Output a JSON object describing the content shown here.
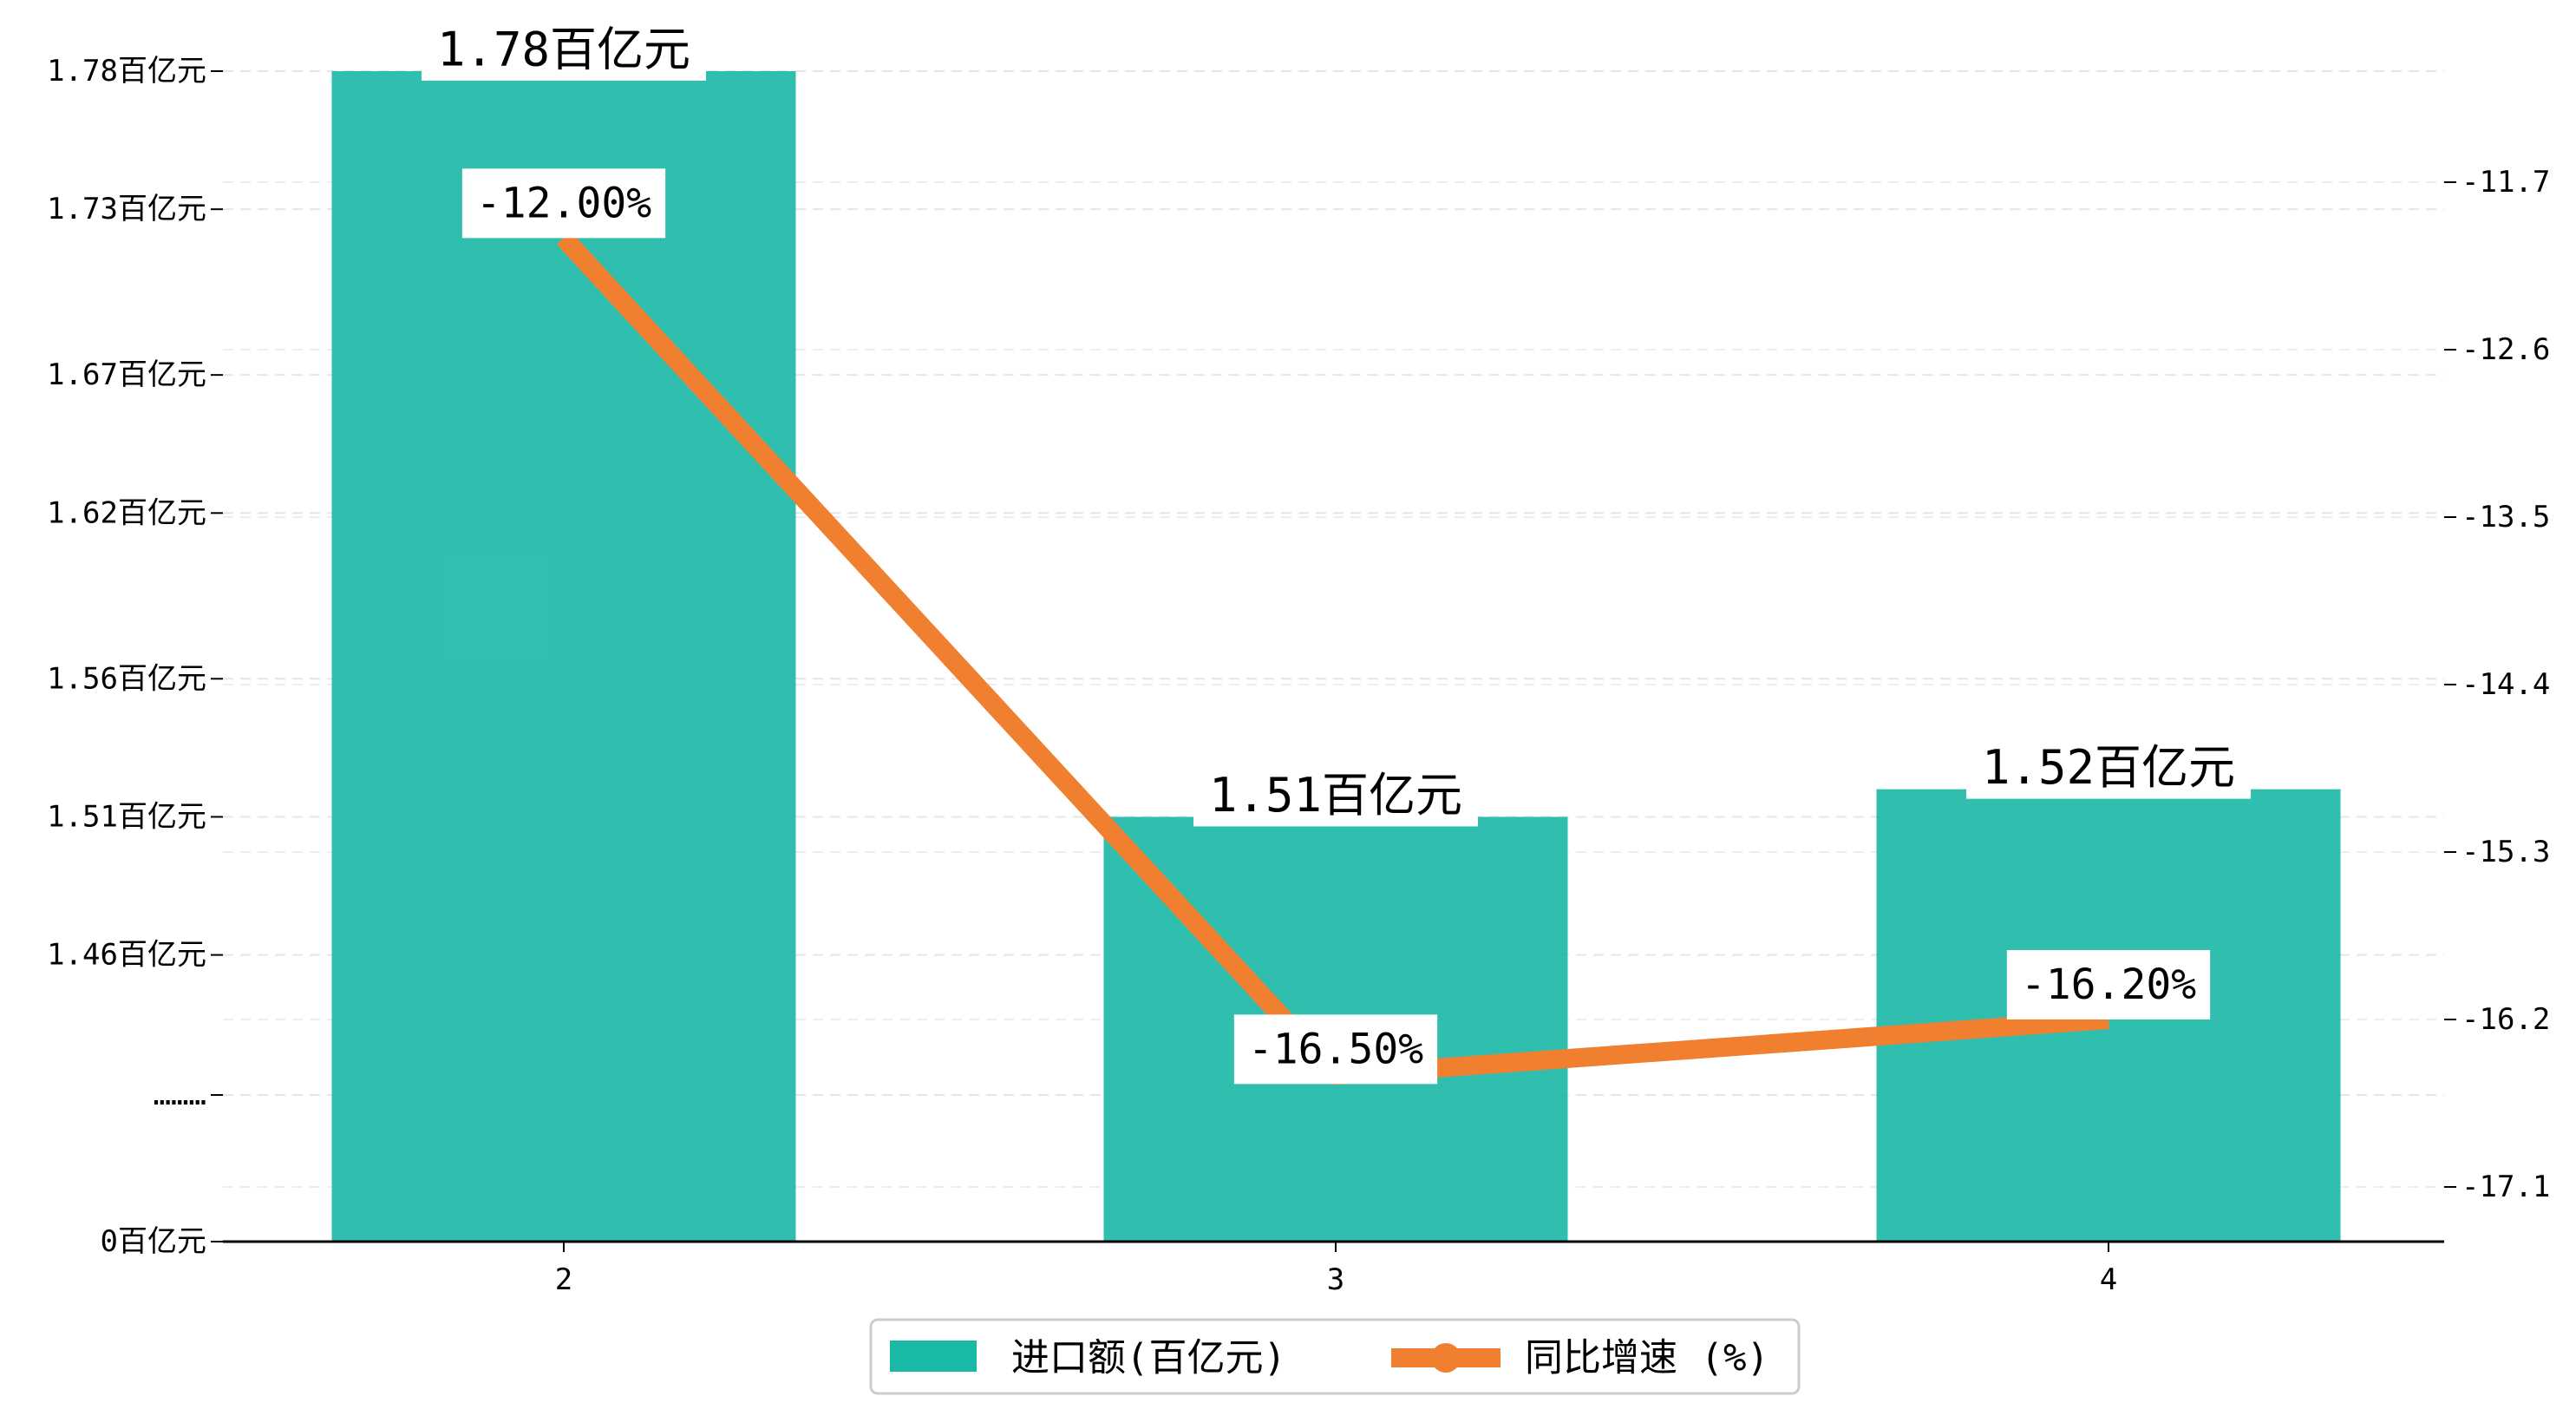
{
  "chart_data": {
    "type": "bar",
    "categories": [
      "2",
      "3",
      "4"
    ],
    "series": [
      {
        "name": "进口额(百亿元)",
        "type": "bar",
        "axis": "left",
        "values": [
          1.78,
          1.51,
          1.52
        ],
        "labels": [
          "1.78百亿元",
          "1.51百亿元",
          "1.52百亿元"
        ],
        "color": "#1ab8a6"
      },
      {
        "name": "同比增速 (%)",
        "type": "line",
        "axis": "right",
        "values": [
          -12.0,
          -16.5,
          -16.2
        ],
        "labels": [
          "-12.00%",
          "-16.50%",
          "-16.20%"
        ],
        "color": "#f08030"
      }
    ],
    "y_left": {
      "broken_axis": true,
      "ticks": [
        {
          "value": 0,
          "label": "0百亿元"
        },
        {
          "value": 1.4093,
          "label": "………"
        },
        {
          "value": 1.46,
          "label": "1.46百亿元"
        },
        {
          "value": 1.51,
          "label": "1.51百亿元"
        },
        {
          "value": 1.56,
          "label": "1.56百亿元"
        },
        {
          "value": 1.62,
          "label": "1.62百亿元"
        },
        {
          "value": 1.67,
          "label": "1.67百亿元"
        },
        {
          "value": 1.73,
          "label": "1.73百亿元"
        },
        {
          "value": 1.78,
          "label": "1.78百亿元"
        }
      ]
    },
    "y_right": {
      "ylim": [
        -17.48,
        -11.0
      ],
      "ticks": [
        {
          "value": -11.7,
          "label": "-11.7"
        },
        {
          "value": -12.6,
          "label": "-12.6"
        },
        {
          "value": -13.5,
          "label": "-13.5"
        },
        {
          "value": -14.4,
          "label": "-14.4"
        },
        {
          "value": -15.3,
          "label": "-15.3"
        },
        {
          "value": -16.2,
          "label": "-16.2"
        },
        {
          "value": -17.1,
          "label": "-17.1"
        }
      ]
    },
    "grid": true,
    "legend": "bottom-center",
    "title": "",
    "xlabel": "",
    "ylabel": ""
  }
}
